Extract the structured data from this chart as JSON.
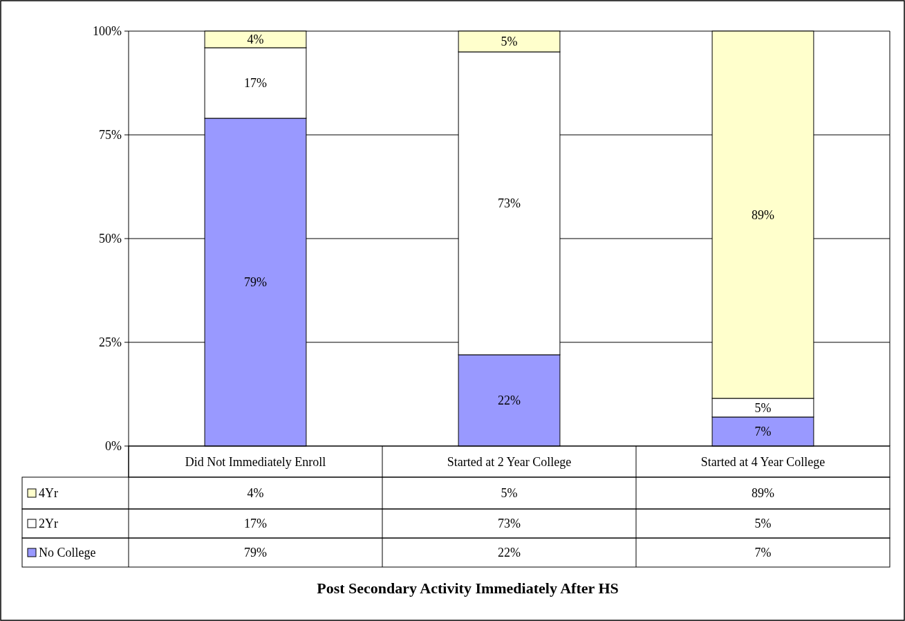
{
  "chart_data": {
    "type": "bar",
    "stacked": true,
    "title": "Post Secondary Activity Immediately After HS",
    "categories": [
      "Did Not Immediately Enroll",
      "Started at 2 Year College",
      "Started at 4 Year College"
    ],
    "series": [
      {
        "name": "No College",
        "color": "#9999ff",
        "values": [
          79,
          22,
          7
        ],
        "value_labels": [
          "79%",
          "22%",
          "7%"
        ]
      },
      {
        "name": "2Yr",
        "color": "#ffffff",
        "values": [
          17,
          73,
          4.5
        ],
        "value_labels": [
          "17%",
          "73%",
          "5%"
        ]
      },
      {
        "name": "4Yr",
        "color": "#ffffcc",
        "values": [
          4,
          5,
          88.5
        ],
        "value_labels": [
          "4%",
          "5%",
          "89%"
        ]
      }
    ],
    "ylim": [
      0,
      100
    ],
    "yticks": [
      {
        "value": 0,
        "label": "0%"
      },
      {
        "value": 25,
        "label": "25%"
      },
      {
        "value": 50,
        "label": "50%"
      },
      {
        "value": 75,
        "label": "75%"
      },
      {
        "value": 100,
        "label": "100%"
      }
    ],
    "grid": "y",
    "legend": "bottom left"
  }
}
